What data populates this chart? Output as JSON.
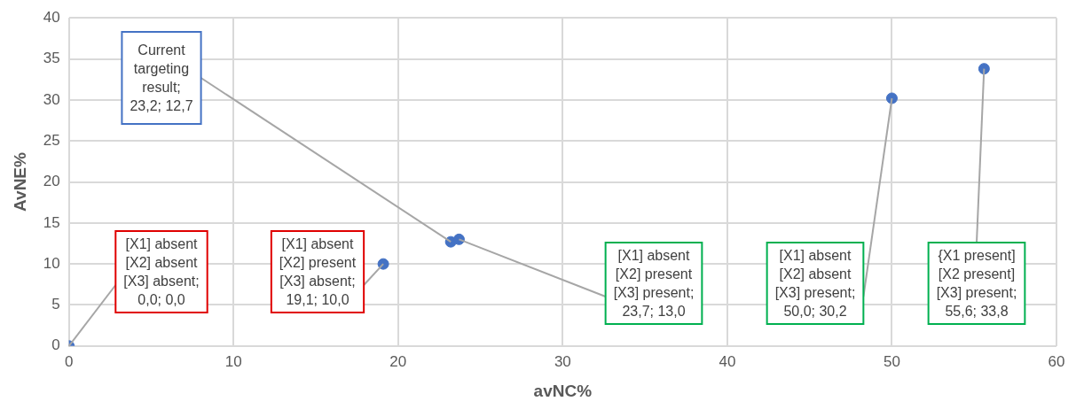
{
  "chart_data": {
    "type": "scatter",
    "xlabel": "avNC%",
    "ylabel": "AvNE%",
    "x": [
      0,
      19.1,
      23.2,
      23.7,
      50.0,
      55.6
    ],
    "values": [
      0,
      10.0,
      12.7,
      13.0,
      30.2,
      33.8
    ],
    "color": "#4472c4",
    "marker": "circle",
    "xlim": [
      0,
      60
    ],
    "xticks": [
      0,
      10,
      20,
      30,
      40,
      50,
      60
    ],
    "ylim": [
      0,
      40
    ],
    "yticks": [
      0,
      5,
      10,
      15,
      20,
      25,
      30,
      35,
      40
    ],
    "grid": true,
    "legend": false,
    "annotations": [
      {
        "text": "[X1] absent\n[X2] absent\n[X3] absent;\n0,0; 0,0",
        "x": 0,
        "y": 0
      },
      {
        "text": "[X1] absent\n[X2] present\n[X3] absent;\n19,1; 10,0",
        "x": 19.1,
        "y": 10.0
      },
      {
        "text": "Current\ntargeting\nresult;\n23,2; 12,7",
        "x": 23.2,
        "y": 12.7
      },
      {
        "text": "[X1] absent\n[X2] present\n[X3] present;\n23,7; 13,0",
        "x": 23.7,
        "y": 13.0
      },
      {
        "text": "[X1] absent\n[X2] absent\n[X3] present;\n50,0; 30,2",
        "x": 50.0,
        "y": 30.2
      },
      {
        "text": "{X1 present]\n[X2 present]\n[X3] present;\n55,6; 33,8",
        "x": 55.6,
        "y": 33.8
      }
    ]
  }
}
